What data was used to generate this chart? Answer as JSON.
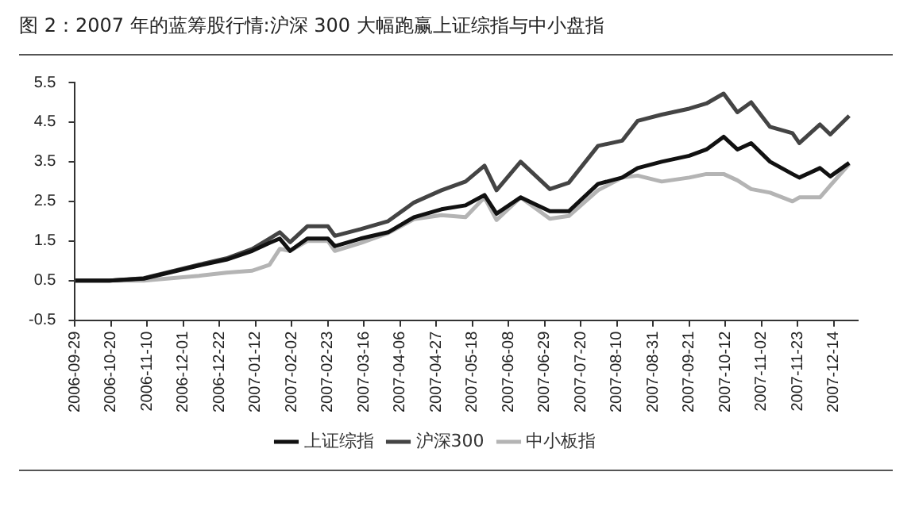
{
  "chart_data": {
    "type": "line",
    "title": "图 2：2007 年的蓝筹股行情:沪深 300 大幅跑赢上证综指与中小盘指",
    "x": [
      "2006-09-29",
      "2006-10-19",
      "2006-11-08",
      "2006-12-10",
      "2006-12-26",
      "2007-01-10",
      "2007-01-20",
      "2007-01-26",
      "2007-02-01",
      "2007-02-11",
      "2007-02-23",
      "2007-02-27",
      "2007-03-14",
      "2007-03-30",
      "2007-04-14",
      "2007-04-30",
      "2007-05-14",
      "2007-05-25",
      "2007-06-01",
      "2007-06-15",
      "2007-07-02",
      "2007-07-13",
      "2007-07-30",
      "2007-08-13",
      "2007-08-22",
      "2007-09-05",
      "2007-09-21",
      "2007-10-01",
      "2007-10-11",
      "2007-10-19",
      "2007-10-27",
      "2007-11-07",
      "2007-11-20",
      "2007-11-24",
      "2007-12-06",
      "2007-12-12",
      "2007-12-23"
    ],
    "series": [
      {
        "name": "上证综指",
        "color": "#111111",
        "values": [
          0.5,
          0.5,
          0.55,
          0.88,
          1.03,
          1.25,
          1.45,
          1.56,
          1.25,
          1.56,
          1.56,
          1.37,
          1.56,
          1.72,
          2.1,
          2.3,
          2.4,
          2.66,
          2.19,
          2.6,
          2.25,
          2.25,
          2.94,
          3.1,
          3.34,
          3.5,
          3.65,
          3.81,
          4.13,
          3.81,
          3.97,
          3.5,
          3.19,
          3.1,
          3.34,
          3.13,
          3.47
        ]
      },
      {
        "name": "沪深300",
        "color": "#444444",
        "values": [
          0.5,
          0.5,
          0.56,
          0.9,
          1.06,
          1.3,
          1.56,
          1.72,
          1.47,
          1.87,
          1.87,
          1.63,
          1.8,
          2.0,
          2.47,
          2.78,
          3.0,
          3.4,
          2.78,
          3.5,
          2.81,
          2.97,
          3.9,
          4.03,
          4.53,
          4.69,
          4.84,
          4.97,
          5.22,
          4.75,
          5.0,
          4.38,
          4.22,
          3.97,
          4.44,
          4.19,
          4.66
        ]
      },
      {
        "name": "中小板指",
        "color": "#b4b4b4",
        "values": [
          0.5,
          0.5,
          0.5,
          0.62,
          0.7,
          0.75,
          0.9,
          1.3,
          1.25,
          1.5,
          1.5,
          1.25,
          1.45,
          1.7,
          2.05,
          2.15,
          2.1,
          2.6,
          2.03,
          2.6,
          2.06,
          2.13,
          2.78,
          3.1,
          3.15,
          3.0,
          3.1,
          3.19,
          3.19,
          3.03,
          2.81,
          2.72,
          2.5,
          2.6,
          2.6,
          2.9,
          3.44
        ]
      }
    ],
    "xlim": [
      "2006-09-29",
      "2007-12-28"
    ],
    "xticks": [
      "2006-09-29",
      "2006-10-20",
      "2006-11-10",
      "2006-12-01",
      "2006-12-22",
      "2007-01-12",
      "2007-02-02",
      "2007-02-23",
      "2007-03-16",
      "2007-04-06",
      "2007-04-27",
      "2007-05-18",
      "2007-06-08",
      "2007-06-29",
      "2007-07-20",
      "2007-08-10",
      "2007-08-31",
      "2007-09-21",
      "2007-10-12",
      "2007-11-02",
      "2007-11-23",
      "2007-12-14"
    ],
    "ylim": [
      -0.5,
      5.5
    ],
    "yticks": [
      -0.5,
      0.5,
      1.5,
      2.5,
      3.5,
      4.5,
      5.5
    ],
    "grid": false,
    "legend": "bottom",
    "marker": "none",
    "line_style": "solid"
  }
}
